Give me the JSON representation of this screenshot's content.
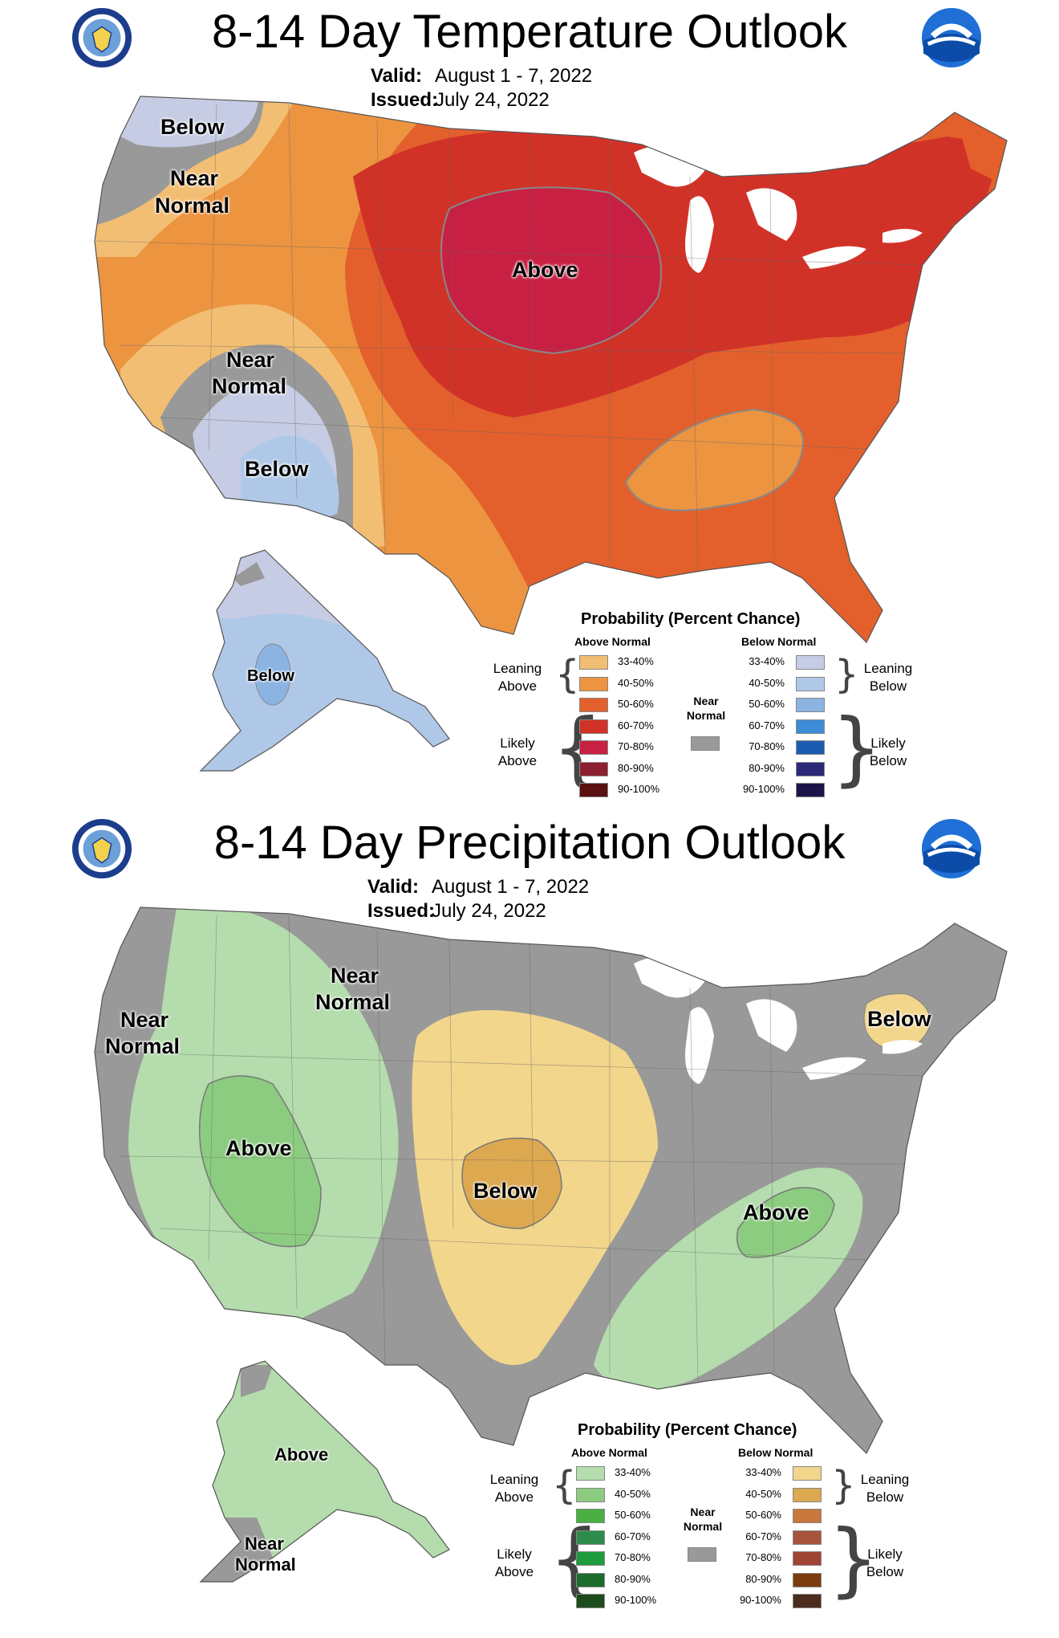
{
  "temperature": {
    "title": "8-14 Day Temperature Outlook",
    "valid_label": "Valid:",
    "valid_value": "August 1 - 7, 2022",
    "issued_label": "Issued:",
    "issued_value": "July 24, 2022",
    "regions": {
      "nw_below": "Below",
      "nw_near_1": "Near",
      "nw_near_2": "Normal",
      "sw_near_1": "Near",
      "sw_near_2": "Normal",
      "sw_below": "Below",
      "central_above": "Above",
      "alaska_below": "Below"
    },
    "legend": {
      "title": "Probability (Percent Chance)",
      "above_header": "Above Normal",
      "below_header": "Below Normal",
      "near_normal_1": "Near",
      "near_normal_2": "Normal",
      "leaning_above_1": "Leaning",
      "leaning_above_2": "Above",
      "likely_above_1": "Likely",
      "likely_above_2": "Above",
      "leaning_below_1": "Leaning",
      "leaning_below_2": "Below",
      "likely_below_1": "Likely",
      "likely_below_2": "Below",
      "bins": [
        "33-40%",
        "40-50%",
        "50-60%",
        "60-70%",
        "70-80%",
        "80-90%",
        "90-100%"
      ],
      "above_colors": [
        "#f2be73",
        "#ec9440",
        "#e3602c",
        "#d13228",
        "#c82042",
        "#8c2030",
        "#5a1010"
      ],
      "below_colors": [
        "#c6cce4",
        "#b0c8e8",
        "#8cb4e2",
        "#3c8cd8",
        "#1c5cb0",
        "#2c2878",
        "#1c1448"
      ],
      "near_color": "#999999"
    }
  },
  "precipitation": {
    "title": "8-14 Day Precipitation Outlook",
    "valid_label": "Valid:",
    "valid_value": "August 1 - 7, 2022",
    "issued_label": "Issued:",
    "issued_value": "July 24, 2022",
    "regions": {
      "west_near_1": "Near",
      "west_near_2": "Normal",
      "north_near_1": "Near",
      "north_near_2": "Normal",
      "west_above": "Above",
      "plains_below": "Below",
      "se_above": "Above",
      "ne_below": "Below",
      "alaska_above": "Above",
      "alaska_near_1": "Near",
      "alaska_near_2": "Normal"
    },
    "legend": {
      "title": "Probability (Percent Chance)",
      "above_header": "Above Normal",
      "below_header": "Below Normal",
      "near_normal_1": "Near",
      "near_normal_2": "Normal",
      "leaning_above_1": "Leaning",
      "leaning_above_2": "Above",
      "likely_above_1": "Likely",
      "likely_above_2": "Above",
      "leaning_below_1": "Leaning",
      "leaning_below_2": "Below",
      "likely_below_1": "Likely",
      "likely_below_2": "Below",
      "bins": [
        "33-40%",
        "40-50%",
        "50-60%",
        "60-70%",
        "70-80%",
        "80-90%",
        "90-100%"
      ],
      "above_colors": [
        "#b4dcac",
        "#8ccc80",
        "#48b040",
        "#2c8c4c",
        "#1c9c3c",
        "#1c6c2c",
        "#1c4c1c"
      ],
      "below_colors": [
        "#f2d68c",
        "#dca850",
        "#c8783c",
        "#a8543c",
        "#a04434",
        "#7c3c10",
        "#4c2c1c"
      ],
      "near_color": "#999999"
    }
  }
}
